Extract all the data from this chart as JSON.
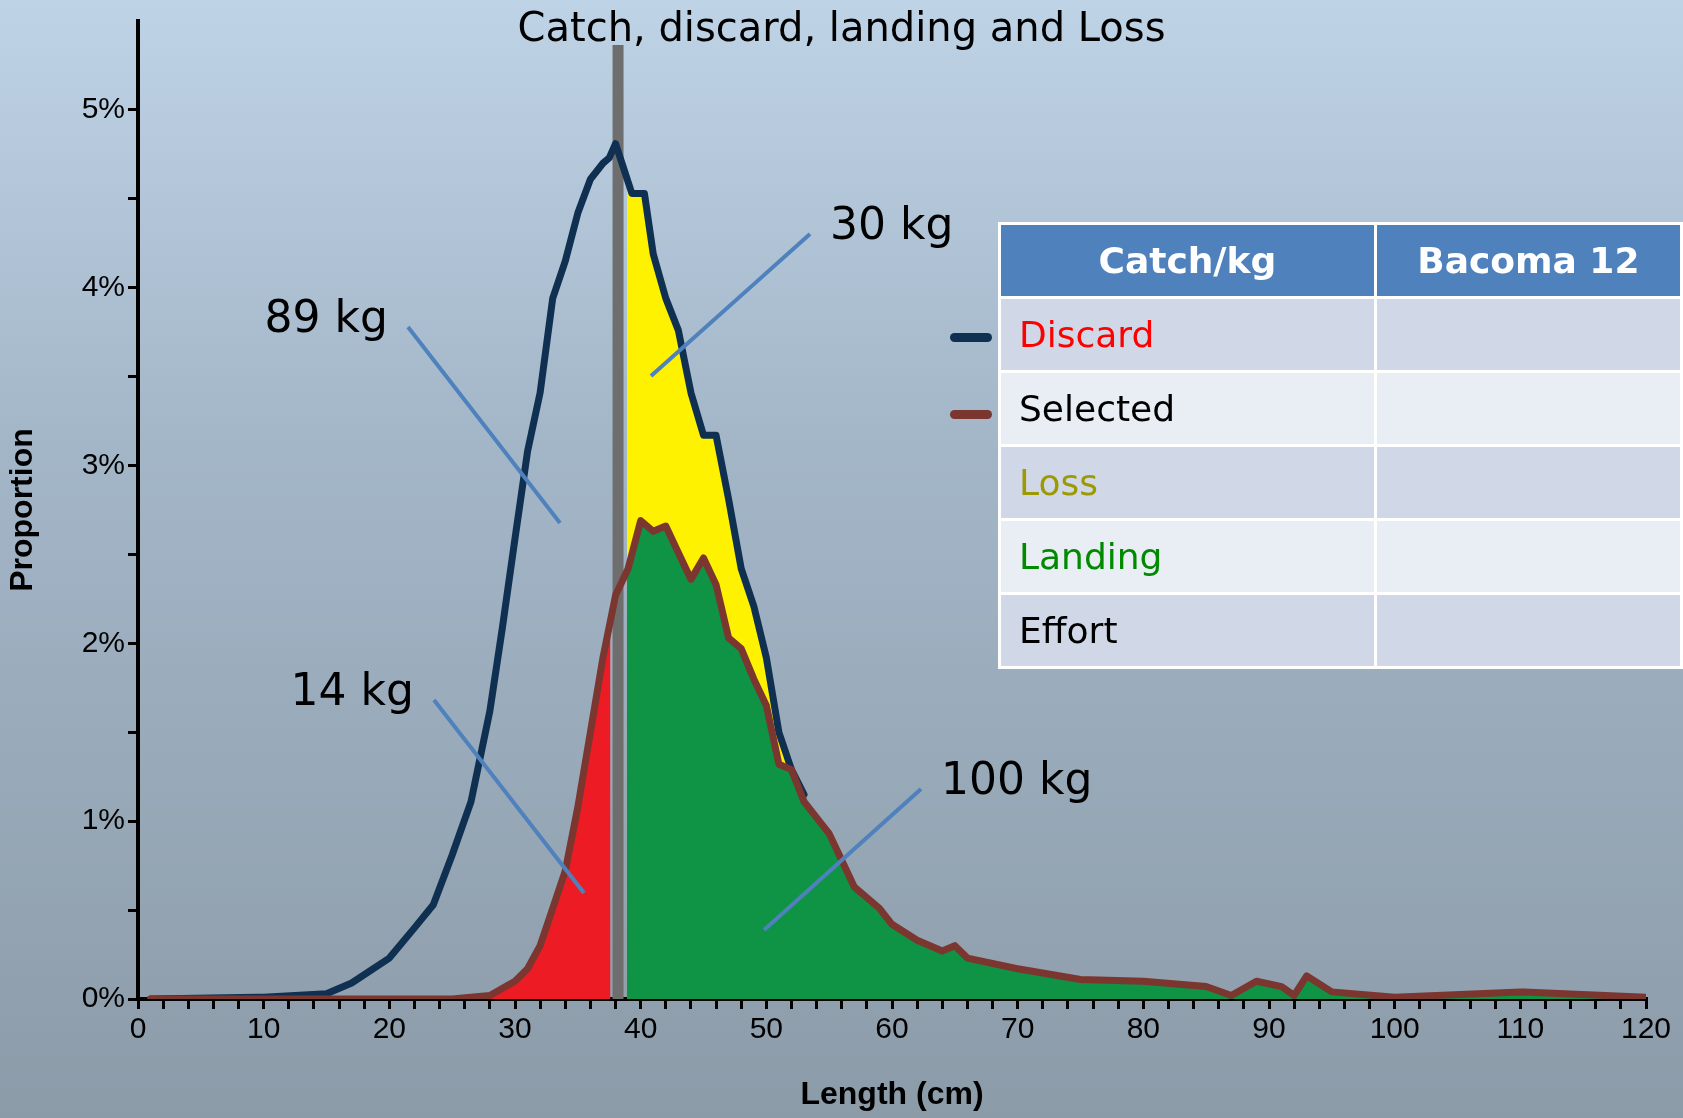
{
  "chart_data": {
    "type": "area",
    "title": "Catch, discard, landing and Loss",
    "xlabel": "Length (cm)",
    "ylabel": "Proportion",
    "xlim": [
      0,
      120
    ],
    "xticks": [
      0,
      {
        "value": 2,
        "label": null
      },
      {
        "value": 4,
        "label": null
      },
      {
        "value": 6,
        "label": null
      },
      {
        "value": 8,
        "label": null
      },
      10,
      {
        "value": 12,
        "label": null
      },
      {
        "value": 14,
        "label": null
      },
      {
        "value": 16,
        "label": null
      },
      {
        "value": 18,
        "label": null
      },
      20,
      {
        "value": 22,
        "label": null
      },
      {
        "value": 24,
        "label": null
      },
      {
        "value": 26,
        "label": null
      },
      {
        "value": 28,
        "label": null
      },
      30,
      {
        "value": 32,
        "label": null
      },
      {
        "value": 34,
        "label": null
      },
      {
        "value": 36,
        "label": null
      },
      {
        "value": 38,
        "label": null
      },
      40,
      {
        "value": 42,
        "label": null
      },
      {
        "value": 44,
        "label": null
      },
      {
        "value": 46,
        "label": null
      },
      {
        "value": 48,
        "label": null
      },
      50,
      {
        "value": 52,
        "label": null
      },
      {
        "value": 54,
        "label": null
      },
      {
        "value": 56,
        "label": null
      },
      {
        "value": 58,
        "label": null
      },
      60,
      {
        "value": 62,
        "label": null
      },
      {
        "value": 64,
        "label": null
      },
      {
        "value": 66,
        "label": null
      },
      {
        "value": 68,
        "label": null
      },
      70,
      {
        "value": 72,
        "label": null
      },
      {
        "value": 74,
        "label": null
      },
      {
        "value": 76,
        "label": null
      },
      {
        "value": 78,
        "label": null
      },
      80,
      {
        "value": 82,
        "label": null
      },
      {
        "value": 84,
        "label": null
      },
      {
        "value": 86,
        "label": null
      },
      {
        "value": 88,
        "label": null
      },
      90,
      {
        "value": 92,
        "label": null
      },
      {
        "value": 94,
        "label": null
      },
      {
        "value": 96,
        "label": null
      },
      {
        "value": 98,
        "label": null
      },
      100,
      {
        "value": 102,
        "label": null
      },
      {
        "value": 104,
        "label": null
      },
      {
        "value": 106,
        "label": null
      },
      {
        "value": 108,
        "label": null
      },
      110,
      {
        "value": 112,
        "label": null
      },
      {
        "value": 114,
        "label": null
      },
      {
        "value": 116,
        "label": null
      },
      {
        "value": 118,
        "label": null
      },
      120
    ],
    "ylim": [
      0,
      5.5
    ],
    "yticks": [
      {
        "value": 0,
        "label": "0%"
      },
      {
        "value": 0.5,
        "label": null
      },
      {
        "value": 1,
        "label": "1%"
      },
      {
        "value": 1.5,
        "label": null
      },
      {
        "value": 2,
        "label": "2%"
      },
      {
        "value": 2.5,
        "label": null
      },
      {
        "value": 3,
        "label": "3%"
      },
      {
        "value": 3.5,
        "label": null
      },
      {
        "value": 4,
        "label": "4%"
      },
      {
        "value": 4.5,
        "label": null
      },
      {
        "value": 5,
        "label": "5%"
      }
    ],
    "marker": "none",
    "line_style": "solid",
    "series": [
      {
        "color": "#fff200",
        "x": [
          38.9,
          39.3,
          40.3,
          41,
          42,
          43,
          44,
          45,
          46,
          47,
          48,
          49,
          50,
          51,
          52
        ],
        "values": [
          4.6,
          4.53,
          4.53,
          4.19,
          3.94,
          3.76,
          3.41,
          3.17,
          3.17,
          2.81,
          2.42,
          2.21,
          1.92,
          1.5,
          1.29
        ]
      },
      {
        "color": "#0e9444",
        "x": [
          38.9,
          40,
          41,
          42,
          43,
          44,
          45,
          46,
          47,
          48,
          49,
          50,
          51,
          52,
          53,
          54,
          55,
          56,
          57,
          58,
          59,
          60,
          62,
          64,
          65,
          66,
          70,
          75,
          80,
          85,
          87,
          89,
          91,
          92,
          93,
          95,
          100,
          110,
          120
        ],
        "values": [
          2.45,
          2.69,
          2.63,
          2.66,
          2.51,
          2.36,
          2.48,
          2.33,
          2.03,
          1.97,
          1.8,
          1.65,
          1.32,
          1.29,
          1.11,
          1.02,
          0.93,
          0.78,
          0.63,
          0.57,
          0.51,
          0.42,
          0.33,
          0.27,
          0.3,
          0.23,
          0.17,
          0.11,
          0.1,
          0.07,
          0.02,
          0.1,
          0.07,
          0.02,
          0.13,
          0.04,
          0.01,
          0.04,
          0.01
        ]
      },
      {
        "color": "#ed1c24",
        "x": [
          28,
          30,
          31,
          32,
          33,
          34,
          35,
          36,
          37,
          37.6
        ],
        "values": [
          0.02,
          0.1,
          0.17,
          0.3,
          0.51,
          0.72,
          1.08,
          1.5,
          1.92,
          2.2
        ]
      },
      {
        "type": "line",
        "color": "#0f3050",
        "x": [
          1,
          10,
          15,
          17,
          20,
          22,
          23.5,
          25,
          26.5,
          28,
          29,
          30,
          31,
          32,
          33,
          34,
          35,
          36,
          37,
          37.5,
          38,
          38.7,
          39.3,
          40.3,
          41,
          42,
          43,
          44,
          45,
          46,
          47,
          48,
          49,
          50,
          51,
          52,
          53
        ],
        "values": [
          0,
          0.01,
          0.03,
          0.09,
          0.23,
          0.4,
          0.53,
          0.81,
          1.11,
          1.62,
          2.09,
          2.59,
          3.08,
          3.41,
          3.94,
          4.15,
          4.42,
          4.61,
          4.7,
          4.73,
          4.81,
          4.66,
          4.53,
          4.53,
          4.19,
          3.94,
          3.76,
          3.41,
          3.17,
          3.17,
          2.81,
          2.42,
          2.21,
          1.92,
          1.5,
          1.29,
          1.15
        ]
      },
      {
        "type": "line",
        "color": "#7b3630",
        "x": [
          1,
          25,
          28,
          30,
          31,
          32,
          33,
          34,
          35,
          36,
          37,
          38,
          39,
          40,
          41,
          42,
          43,
          44,
          45,
          46,
          47,
          48,
          49,
          50,
          51,
          52,
          53,
          54,
          55,
          56,
          57,
          58,
          59,
          60,
          62,
          64,
          65,
          66,
          70,
          75,
          80,
          85,
          87,
          89,
          91,
          92,
          93,
          95,
          100,
          110,
          120
        ],
        "values": [
          0,
          0,
          0.02,
          0.1,
          0.17,
          0.3,
          0.51,
          0.72,
          1.08,
          1.5,
          1.92,
          2.27,
          2.42,
          2.69,
          2.63,
          2.66,
          2.51,
          2.36,
          2.48,
          2.33,
          2.03,
          1.97,
          1.8,
          1.65,
          1.32,
          1.29,
          1.11,
          1.02,
          0.93,
          0.78,
          0.63,
          0.57,
          0.51,
          0.42,
          0.33,
          0.27,
          0.3,
          0.23,
          0.17,
          0.11,
          0.1,
          0.07,
          0.02,
          0.1,
          0.07,
          0.02,
          0.13,
          0.04,
          0.01,
          0.04,
          0.01
        ]
      }
    ],
    "ref_lines": [
      {
        "axis": "x",
        "value": 38.2,
        "color": "#6e6e6e"
      }
    ],
    "annotations": [
      "89 kg",
      "14 kg",
      "30 kg",
      "100 kg",
      "Catch/kg",
      "Bacoma 12",
      "Discard",
      "Selected",
      "Loss",
      "Landing",
      "Effort"
    ]
  }
}
